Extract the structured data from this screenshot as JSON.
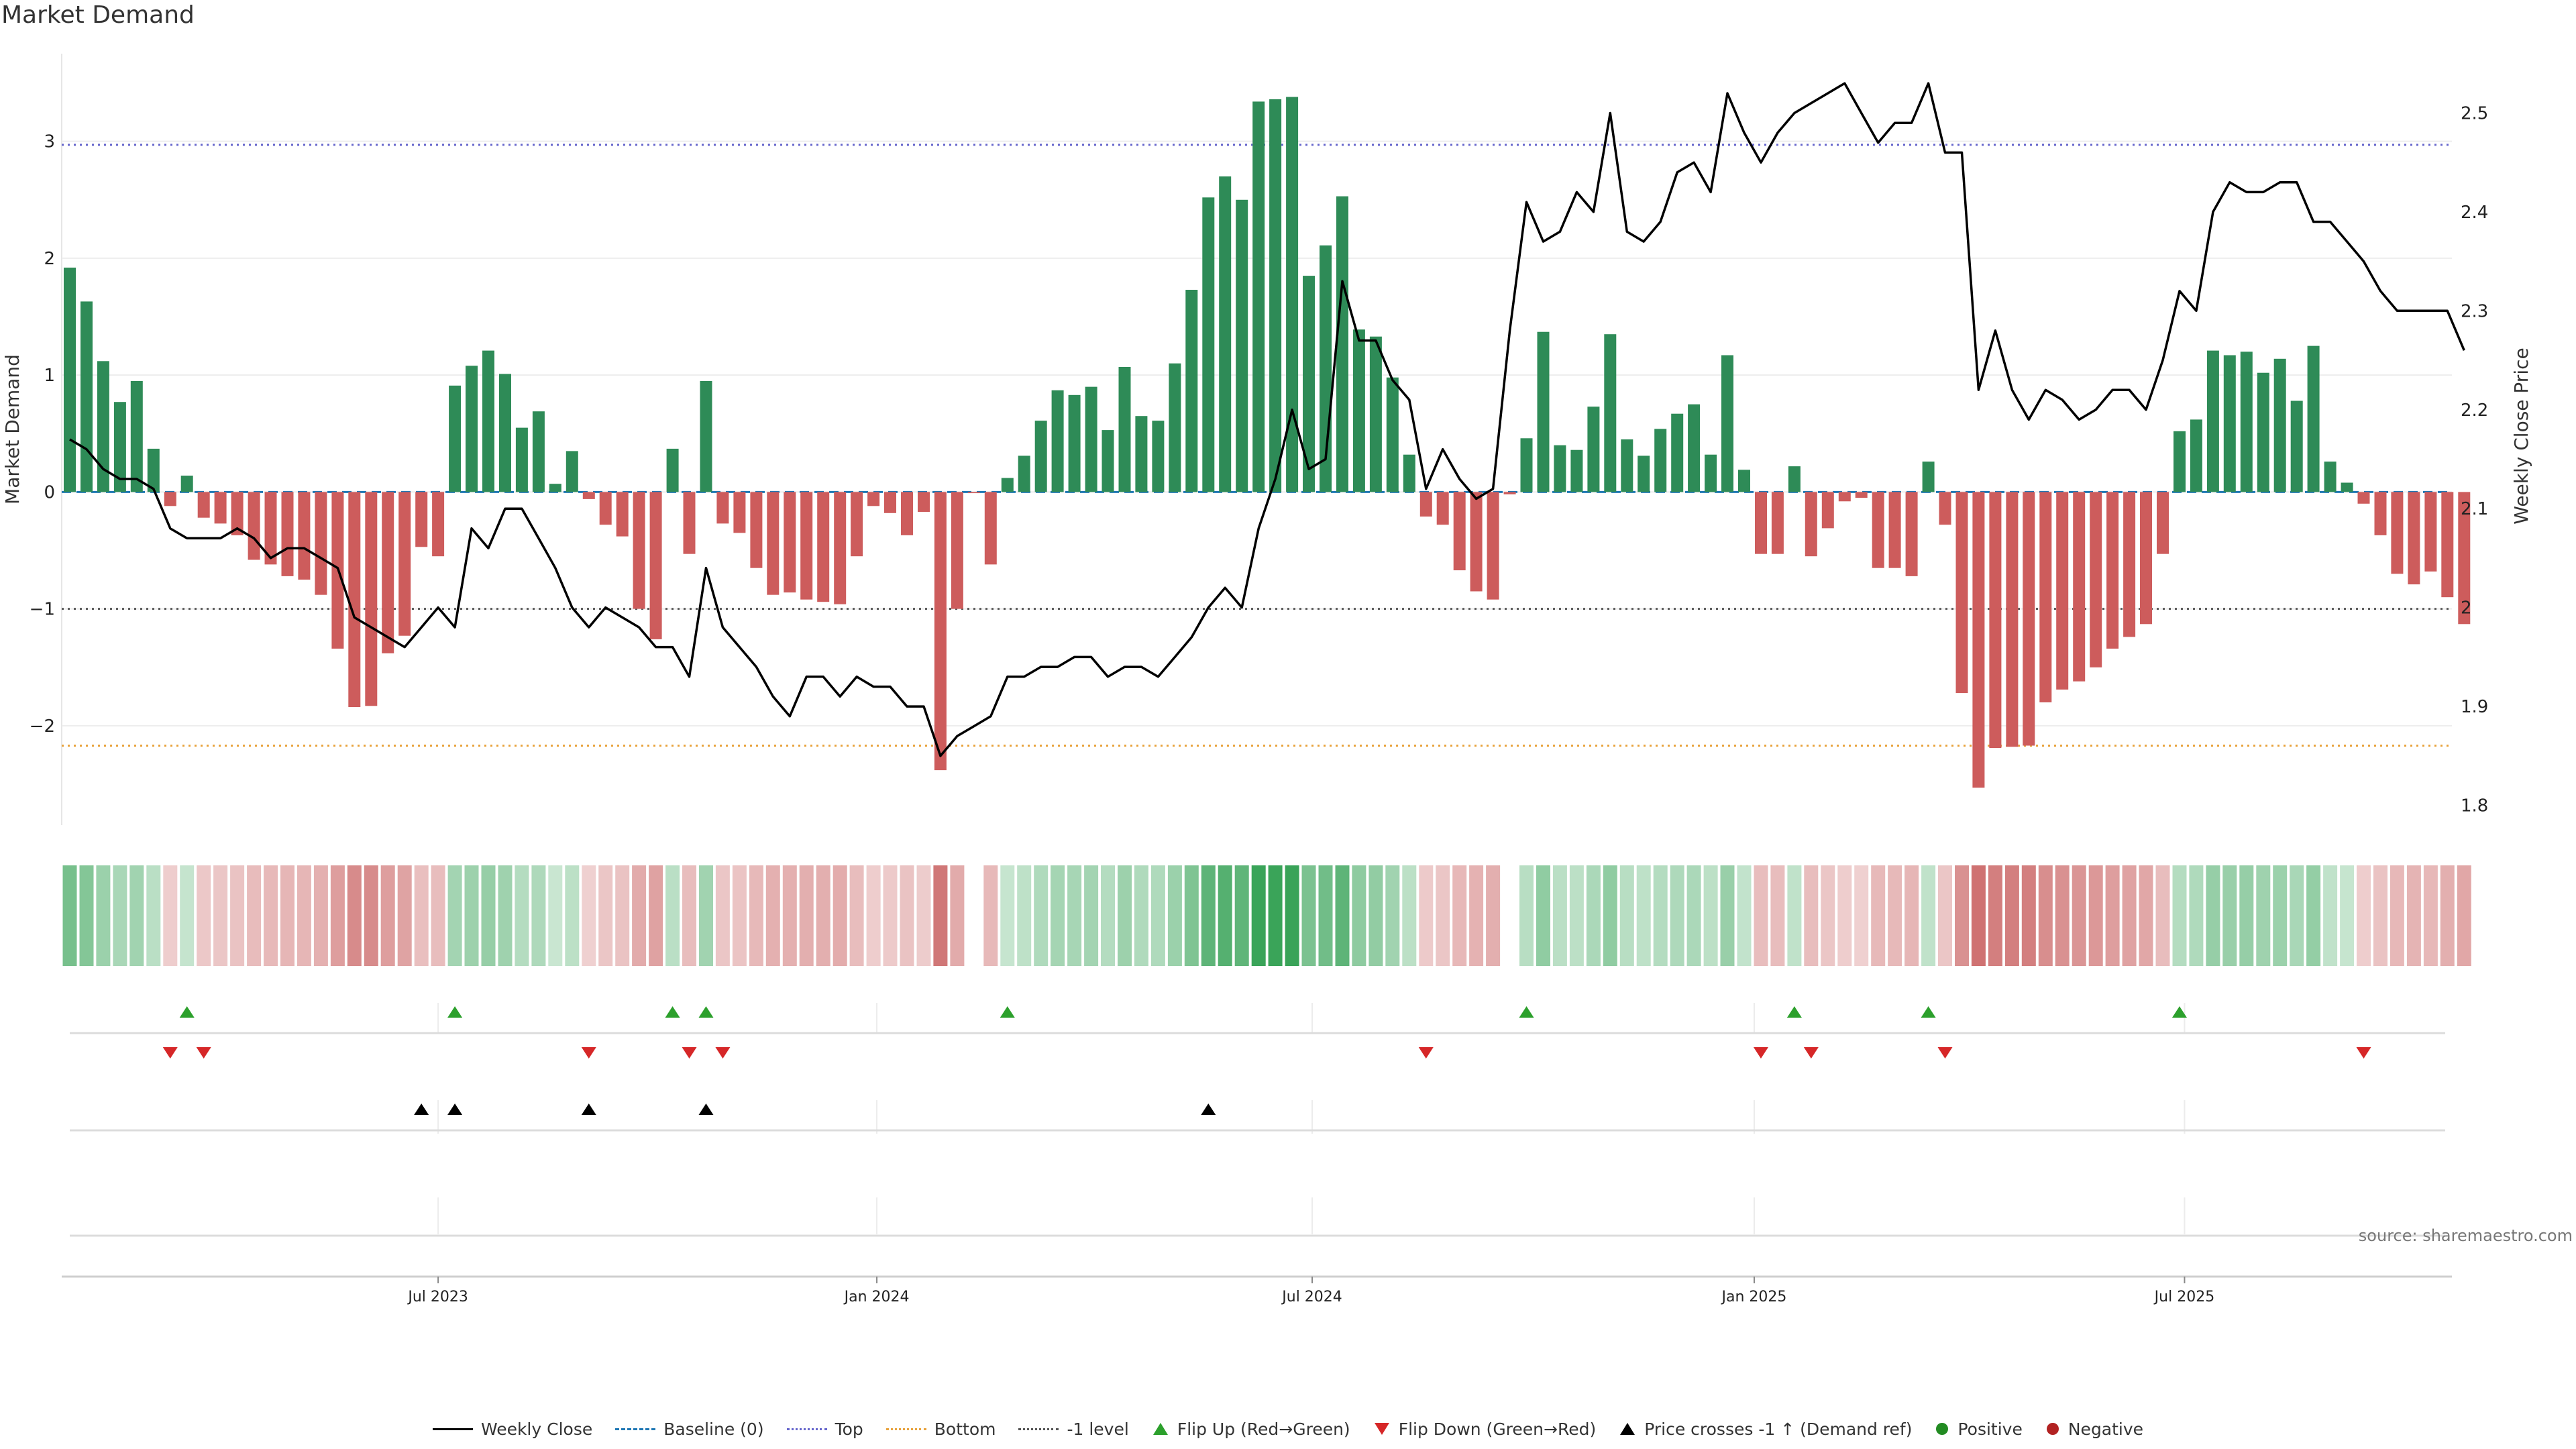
{
  "title": "Market Demand",
  "source": "source: sharemaestro.com",
  "colors": {
    "positive": "#2e8b57",
    "negative": "#cd5c5c",
    "price": "#000000",
    "top": "#6666cc",
    "bottom": "#e8a33d",
    "minus1": "#555555",
    "flip_up": "#2ca02c",
    "flip_down": "#d62728",
    "cross": "#000000",
    "dot_pos": "#228b22",
    "dot_neg": "#b22222"
  },
  "legend": {
    "weekly_close": "Weekly Close",
    "baseline": "Baseline (0)",
    "top": "Top",
    "bottom": "Bottom",
    "minus1": "-1 level",
    "flip_up": "Flip Up (Red→Green)",
    "flip_down": "Flip Down (Green→Red)",
    "cross": "Price crosses -1 ↑ (Demand ref)",
    "positive": "Positive",
    "negative": "Negative"
  },
  "chart_data": {
    "type": "bar",
    "title": "Market Demand",
    "ylabel": "Market Demand",
    "y2label": "Weekly Close Price",
    "ylim": [
      -2.85,
      3.75
    ],
    "y2lim": [
      1.78,
      2.56
    ],
    "yticks": [
      3,
      2,
      1,
      0,
      -1,
      -2
    ],
    "ytick_labels": [
      "3",
      "2",
      "1",
      "0",
      "−1",
      "−2"
    ],
    "y2ticks": [
      2.5,
      2.4,
      2.3,
      2.2,
      2.1,
      2.0,
      1.9,
      1.8
    ],
    "y2tick_labels": [
      "2.5",
      "2.4",
      "2.3",
      "2.2",
      "2.1",
      "2",
      "1.9",
      "1.8"
    ],
    "reference_lines": {
      "top": 2.97,
      "bottom": -2.17,
      "minus1": -1.0,
      "baseline": 0
    },
    "start_week": 0,
    "n_weeks": 144,
    "x_ticks": [
      {
        "week": 22,
        "label": "Jul 2023"
      },
      {
        "week": 48.2,
        "label": "Jan 2024"
      },
      {
        "week": 74.2,
        "label": "Jul 2024"
      },
      {
        "week": 100.6,
        "label": "Jan 2025"
      },
      {
        "week": 126.3,
        "label": "Jul 2025"
      }
    ],
    "demand": [
      1.92,
      1.63,
      1.12,
      0.77,
      0.95,
      0.37,
      -0.12,
      0.14,
      -0.22,
      -0.27,
      -0.37,
      -0.58,
      -0.62,
      -0.72,
      -0.75,
      -0.88,
      -1.34,
      -1.84,
      -1.83,
      -1.38,
      -1.23,
      -0.47,
      -0.55,
      0.91,
      1.08,
      1.21,
      1.01,
      0.55,
      0.69,
      0.07,
      0.35,
      -0.06,
      -0.28,
      -0.38,
      -1.0,
      -1.26,
      0.37,
      -0.53,
      0.95,
      -0.27,
      -0.35,
      -0.65,
      -0.88,
      -0.86,
      -0.92,
      -0.94,
      -0.96,
      -0.55,
      -0.12,
      -0.18,
      -0.37,
      -0.17,
      -2.38,
      -1.0,
      -0.01,
      -0.62,
      0.12,
      0.31,
      0.61,
      0.87,
      0.83,
      0.9,
      0.53,
      1.07,
      0.65,
      0.61,
      1.1,
      1.73,
      2.52,
      2.7,
      2.5,
      3.34,
      3.36,
      3.38,
      1.85,
      2.11,
      2.53,
      1.39,
      1.33,
      0.98,
      0.32,
      -0.21,
      -0.28,
      -0.67,
      -0.85,
      -0.92,
      -0.02,
      0.46,
      1.37,
      0.4,
      0.36,
      0.73,
      1.35,
      0.45,
      0.31,
      0.54,
      0.67,
      0.75,
      0.32,
      1.17,
      0.19,
      -0.53,
      -0.53,
      0.22,
      -0.55,
      -0.31,
      -0.08,
      -0.05,
      -0.65,
      -0.65,
      -0.72,
      0.26,
      -0.28,
      -1.72,
      -2.53,
      -2.19,
      -2.18,
      -2.17,
      -1.8,
      -1.69,
      -1.62,
      -1.5,
      -1.34,
      -1.24,
      -1.13,
      -0.53,
      0.52,
      0.62,
      1.21,
      1.17,
      1.2,
      1.02,
      1.14,
      0.78,
      1.25,
      0.26,
      0.08,
      -0.1,
      -0.37,
      -0.7,
      -0.79,
      -0.68,
      -0.9,
      -1.13
    ],
    "price": [
      2.17,
      2.16,
      2.14,
      2.13,
      2.13,
      2.12,
      2.08,
      2.07,
      2.07,
      2.07,
      2.08,
      2.07,
      2.05,
      2.06,
      2.06,
      2.05,
      2.04,
      1.99,
      1.98,
      1.97,
      1.96,
      1.98,
      2.0,
      1.98,
      2.08,
      2.06,
      2.1,
      2.1,
      2.07,
      2.04,
      2.0,
      1.98,
      2.0,
      1.99,
      1.98,
      1.96,
      1.96,
      1.93,
      2.04,
      1.98,
      1.96,
      1.94,
      1.91,
      1.89,
      1.93,
      1.93,
      1.91,
      1.93,
      1.92,
      1.92,
      1.9,
      1.9,
      1.85,
      1.87,
      1.88,
      1.89,
      1.93,
      1.93,
      1.94,
      1.94,
      1.95,
      1.95,
      1.93,
      1.94,
      1.94,
      1.93,
      1.95,
      1.97,
      2.0,
      2.02,
      2.0,
      2.08,
      2.13,
      2.2,
      2.14,
      2.15,
      2.33,
      2.27,
      2.27,
      2.23,
      2.21,
      2.12,
      2.16,
      2.13,
      2.11,
      2.12,
      2.28,
      2.41,
      2.37,
      2.38,
      2.42,
      2.4,
      2.5,
      2.38,
      2.37,
      2.39,
      2.44,
      2.45,
      2.42,
      2.52,
      2.48,
      2.45,
      2.48,
      2.5,
      2.51,
      2.52,
      2.53,
      2.5,
      2.47,
      2.49,
      2.49,
      2.53,
      2.46,
      2.46,
      2.22,
      2.28,
      2.22,
      2.19,
      2.22,
      2.21,
      2.19,
      2.2,
      2.22,
      2.22,
      2.2,
      2.25,
      2.32,
      2.3,
      2.4,
      2.43,
      2.42,
      2.42,
      2.43,
      2.43,
      2.39,
      2.39,
      2.37,
      2.35,
      2.32,
      2.3,
      2.3,
      2.3,
      2.3,
      2.26
    ],
    "flip_up_weeks": [
      7,
      23,
      36,
      38,
      56,
      87,
      103,
      111,
      126
    ],
    "flip_down_weeks": [
      6,
      8,
      31,
      37,
      39,
      81,
      101,
      104,
      112,
      137
    ],
    "price_cross_weeks": [
      21,
      23,
      31,
      38,
      68
    ]
  }
}
